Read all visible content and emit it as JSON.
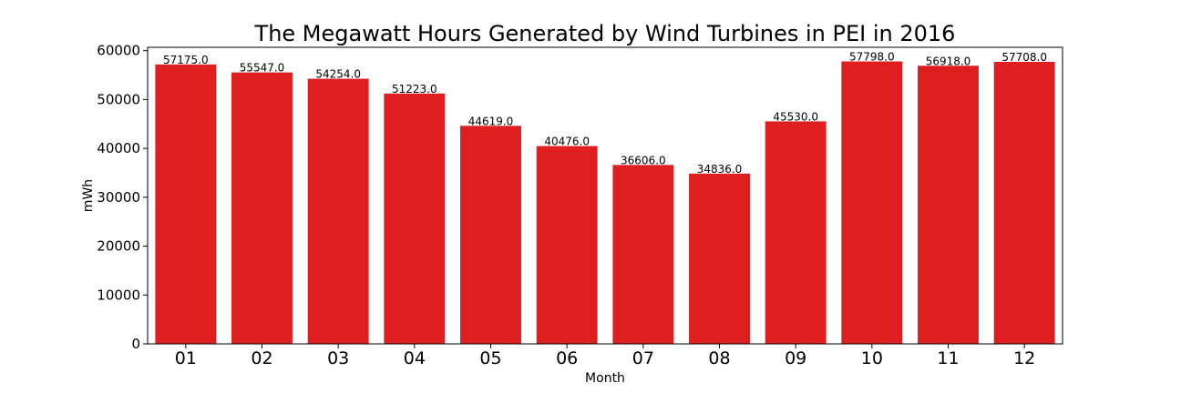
{
  "chart_data": {
    "type": "bar",
    "title": "The Megawatt Hours Generated by Wind Turbines in PEI in 2016",
    "xlabel": "Month",
    "ylabel": "mWh",
    "categories": [
      "01",
      "02",
      "03",
      "04",
      "05",
      "06",
      "07",
      "08",
      "09",
      "10",
      "11",
      "12"
    ],
    "values": [
      57175.0,
      55547.0,
      54254.0,
      51223.0,
      44619.0,
      40476.0,
      36606.0,
      34836.0,
      45530.0,
      57798.0,
      56918.0,
      57708.0
    ],
    "value_labels": [
      "57175.0",
      "55547.0",
      "54254.0",
      "51223.0",
      "44619.0",
      "40476.0",
      "36606.0",
      "34836.0",
      "45530.0",
      "57798.0",
      "56918.0",
      "57708.0"
    ],
    "yticks": [
      0,
      10000,
      20000,
      30000,
      40000,
      50000,
      60000
    ],
    "ylim": [
      0,
      60688
    ],
    "grid": false,
    "legend": "none",
    "bar_color": "#df1f1f"
  }
}
